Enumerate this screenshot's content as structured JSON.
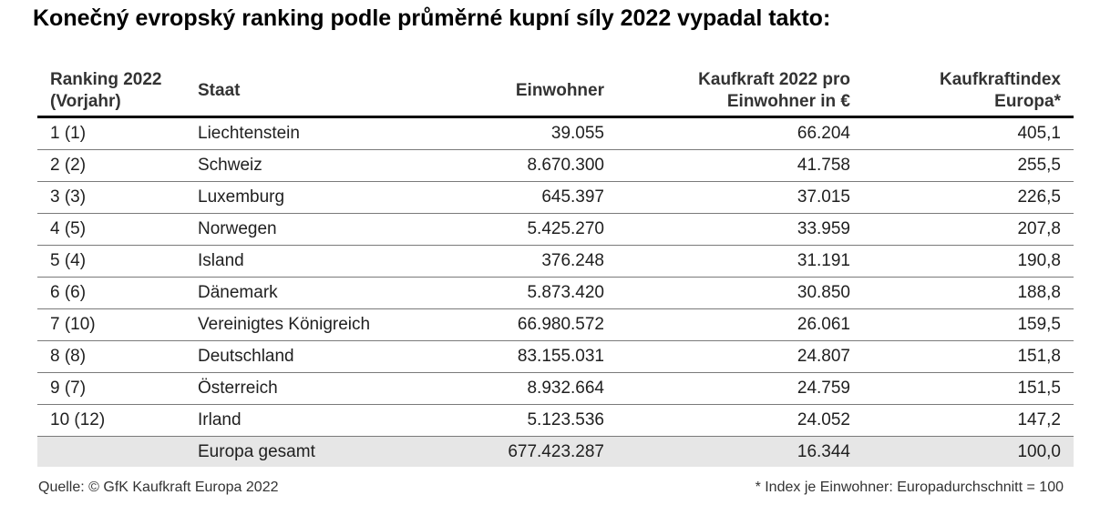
{
  "title": "Konečný evropský ranking podle průměrné kupní síly 2022 vypadal takto:",
  "table": {
    "headers": {
      "rank_line1": "Ranking 2022",
      "rank_line2": "(Vorjahr)",
      "staat": "Staat",
      "einwohner": "Einwohner",
      "kaufkraft_line1": "Kaufkraft 2022 pro",
      "kaufkraft_line2": "Einwohner in €",
      "index_line1": "Kaufkraftindex",
      "index_line2": "Europa*"
    },
    "rows": [
      {
        "rank": "1 (1)",
        "staat": "Liechtenstein",
        "einwohner": "39.055",
        "kaufkraft": "66.204",
        "index": "405,1"
      },
      {
        "rank": "2 (2)",
        "staat": "Schweiz",
        "einwohner": "8.670.300",
        "kaufkraft": "41.758",
        "index": "255,5"
      },
      {
        "rank": "3 (3)",
        "staat": "Luxemburg",
        "einwohner": "645.397",
        "kaufkraft": "37.015",
        "index": "226,5"
      },
      {
        "rank": "4 (5)",
        "staat": "Norwegen",
        "einwohner": "5.425.270",
        "kaufkraft": "33.959",
        "index": "207,8"
      },
      {
        "rank": "5 (4)",
        "staat": "Island",
        "einwohner": "376.248",
        "kaufkraft": "31.191",
        "index": "190,8"
      },
      {
        "rank": "6 (6)",
        "staat": "Dänemark",
        "einwohner": "5.873.420",
        "kaufkraft": "30.850",
        "index": "188,8"
      },
      {
        "rank": "7 (10)",
        "staat": "Vereinigtes Königreich",
        "einwohner": "66.980.572",
        "kaufkraft": "26.061",
        "index": "159,5"
      },
      {
        "rank": "8 (8)",
        "staat": "Deutschland",
        "einwohner": "83.155.031",
        "kaufkraft": "24.807",
        "index": "151,8"
      },
      {
        "rank": "9 (7)",
        "staat": "Österreich",
        "einwohner": "8.932.664",
        "kaufkraft": "24.759",
        "index": "151,5"
      },
      {
        "rank": "10 (12)",
        "staat": "Irland",
        "einwohner": "5.123.536",
        "kaufkraft": "24.052",
        "index": "147,2"
      }
    ],
    "total": {
      "rank": "",
      "staat": "Europa gesamt",
      "einwohner": "677.423.287",
      "kaufkraft": "16.344",
      "index": "100,0"
    }
  },
  "footer": {
    "source": "Quelle: © GfK Kaufkraft Europa 2022",
    "note": "* Index je Einwohner: Europadurchschnitt = 100"
  }
}
